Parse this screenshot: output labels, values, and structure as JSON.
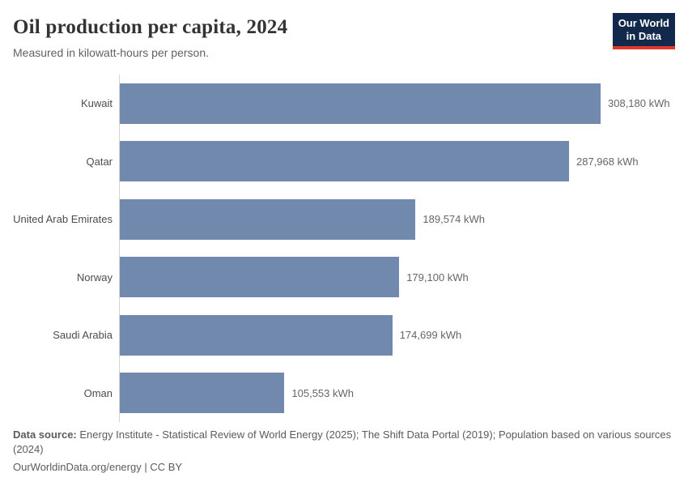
{
  "header": {
    "title": "Oil production per capita, 2024",
    "subtitle": "Measured in kilowatt-hours per person.",
    "logo": {
      "line1": "Our World",
      "line2": "in Data"
    }
  },
  "chart_data": {
    "type": "bar",
    "orientation": "horizontal",
    "title": "Oil production per capita, 2024",
    "subtitle": "Measured in kilowatt-hours per person.",
    "unit": "kWh",
    "categories": [
      "Kuwait",
      "Qatar",
      "United Arab Emirates",
      "Norway",
      "Saudi Arabia",
      "Oman"
    ],
    "values": [
      308180,
      287968,
      189574,
      179100,
      174699,
      105553
    ],
    "value_labels": [
      "308,180 kWh",
      "287,968 kWh",
      "189,574 kWh",
      "179,100 kWh",
      "174,699 kWh",
      "105,553 kWh"
    ],
    "xlim": [
      0,
      308180
    ],
    "grid": false,
    "legend": "none",
    "bar_color": "#7289ae",
    "axis_color": "#d6d6d6"
  },
  "footer": {
    "source_label": "Data source:",
    "source_text": "Energy Institute - Statistical Review of World Energy (2025); The Shift Data Portal (2019); Population based on various sources (2024)",
    "link_text": "OurWorldinData.org/energy",
    "separator": " | ",
    "license": "CC BY"
  },
  "colors": {
    "bar": "#7289ae",
    "axis": "#d6d6d6",
    "logo_bg": "#12294b",
    "logo_accent": "#e2372b",
    "title": "#333333",
    "subtitle": "#616161",
    "footer": "#5b5b5b"
  }
}
